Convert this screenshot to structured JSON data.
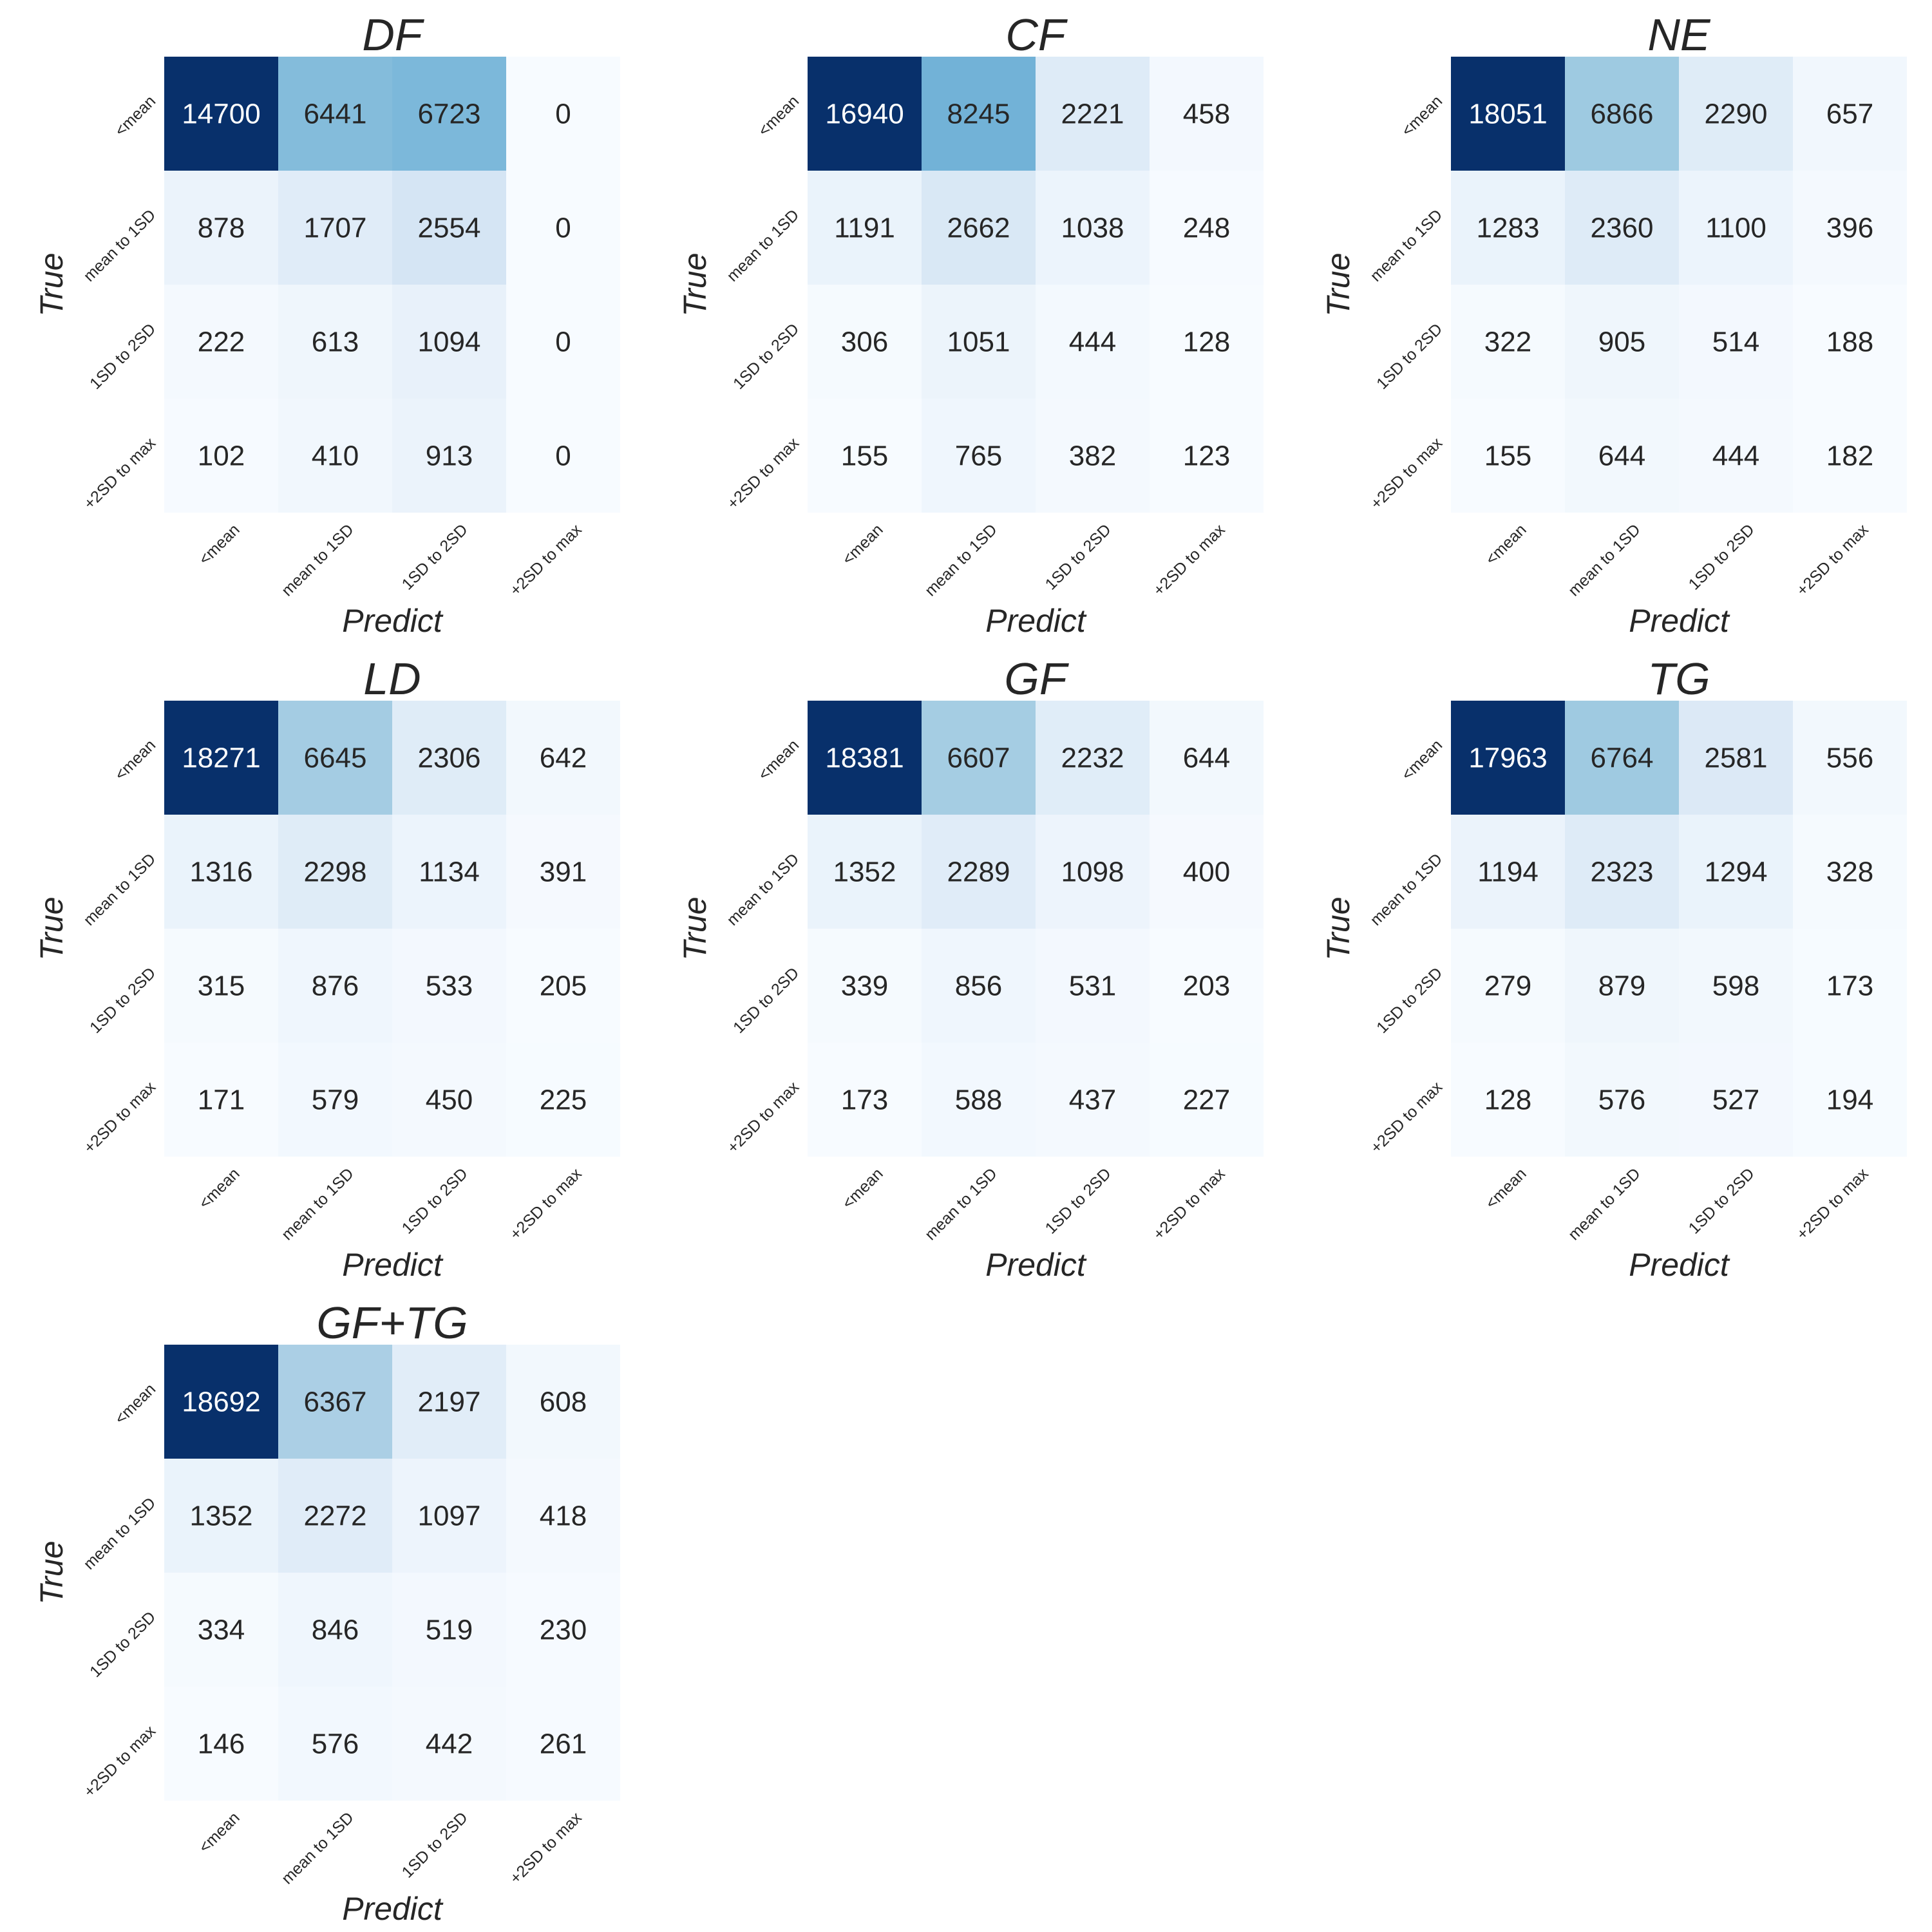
{
  "chart_data": [
    {
      "type": "heatmap",
      "title": "DF",
      "xlabel": "Predict",
      "ylabel": "True",
      "x_categories": [
        "<mean",
        "mean to 1SD",
        "1SD to 2SD",
        "+2SD to max"
      ],
      "y_categories": [
        "<mean",
        "mean to 1SD",
        "1SD to 2SD",
        "+2SD to max"
      ],
      "values": [
        [
          14700,
          6441,
          6723,
          0
        ],
        [
          878,
          1707,
          2554,
          0
        ],
        [
          222,
          613,
          1094,
          0
        ],
        [
          102,
          410,
          913,
          0
        ]
      ],
      "colormap": "Blues",
      "colorbar": false
    },
    {
      "type": "heatmap",
      "title": "CF",
      "xlabel": "Predict",
      "ylabel": "True",
      "x_categories": [
        "<mean",
        "mean to 1SD",
        "1SD to 2SD",
        "+2SD to max"
      ],
      "y_categories": [
        "<mean",
        "mean to 1SD",
        "1SD to 2SD",
        "+2SD to max"
      ],
      "values": [
        [
          16940,
          8245,
          2221,
          458
        ],
        [
          1191,
          2662,
          1038,
          248
        ],
        [
          306,
          1051,
          444,
          128
        ],
        [
          155,
          765,
          382,
          123
        ]
      ],
      "colormap": "Blues",
      "colorbar": false
    },
    {
      "type": "heatmap",
      "title": "NE",
      "xlabel": "Predict",
      "ylabel": "True",
      "x_categories": [
        "<mean",
        "mean to 1SD",
        "1SD to 2SD",
        "+2SD to max"
      ],
      "y_categories": [
        "<mean",
        "mean to 1SD",
        "1SD to 2SD",
        "+2SD to max"
      ],
      "values": [
        [
          18051,
          6866,
          2290,
          657
        ],
        [
          1283,
          2360,
          1100,
          396
        ],
        [
          322,
          905,
          514,
          188
        ],
        [
          155,
          644,
          444,
          182
        ]
      ],
      "colormap": "Blues",
      "colorbar": false
    },
    {
      "type": "heatmap",
      "title": "LD",
      "xlabel": "Predict",
      "ylabel": "True",
      "x_categories": [
        "<mean",
        "mean to 1SD",
        "1SD to 2SD",
        "+2SD to max"
      ],
      "y_categories": [
        "<mean",
        "mean to 1SD",
        "1SD to 2SD",
        "+2SD to max"
      ],
      "values": [
        [
          18271,
          6645,
          2306,
          642
        ],
        [
          1316,
          2298,
          1134,
          391
        ],
        [
          315,
          876,
          533,
          205
        ],
        [
          171,
          579,
          450,
          225
        ]
      ],
      "colormap": "Blues",
      "colorbar": false
    },
    {
      "type": "heatmap",
      "title": "GF",
      "xlabel": "Predict",
      "ylabel": "True",
      "x_categories": [
        "<mean",
        "mean to 1SD",
        "1SD to 2SD",
        "+2SD to max"
      ],
      "y_categories": [
        "<mean",
        "mean to 1SD",
        "1SD to 2SD",
        "+2SD to max"
      ],
      "values": [
        [
          18381,
          6607,
          2232,
          644
        ],
        [
          1352,
          2289,
          1098,
          400
        ],
        [
          339,
          856,
          531,
          203
        ],
        [
          173,
          588,
          437,
          227
        ]
      ],
      "colormap": "Blues",
      "colorbar": false
    },
    {
      "type": "heatmap",
      "title": "TG",
      "xlabel": "Predict",
      "ylabel": "True",
      "x_categories": [
        "<mean",
        "mean to 1SD",
        "1SD to 2SD",
        "+2SD to max"
      ],
      "y_categories": [
        "<mean",
        "mean to 1SD",
        "1SD to 2SD",
        "+2SD to max"
      ],
      "values": [
        [
          17963,
          6764,
          2581,
          556
        ],
        [
          1194,
          2323,
          1294,
          328
        ],
        [
          279,
          879,
          598,
          173
        ],
        [
          128,
          576,
          527,
          194
        ]
      ],
      "colormap": "Blues",
      "colorbar": false
    },
    {
      "type": "heatmap",
      "title": "GF+TG",
      "xlabel": "Predict",
      "ylabel": "True",
      "x_categories": [
        "<mean",
        "mean to 1SD",
        "1SD to 2SD",
        "+2SD to max"
      ],
      "y_categories": [
        "<mean",
        "mean to 1SD",
        "1SD to 2SD",
        "+2SD to max"
      ],
      "values": [
        [
          18692,
          6367,
          2197,
          608
        ],
        [
          1352,
          2272,
          1097,
          418
        ],
        [
          334,
          846,
          519,
          230
        ],
        [
          146,
          576,
          442,
          261
        ]
      ],
      "colormap": "Blues",
      "colorbar": false
    }
  ]
}
